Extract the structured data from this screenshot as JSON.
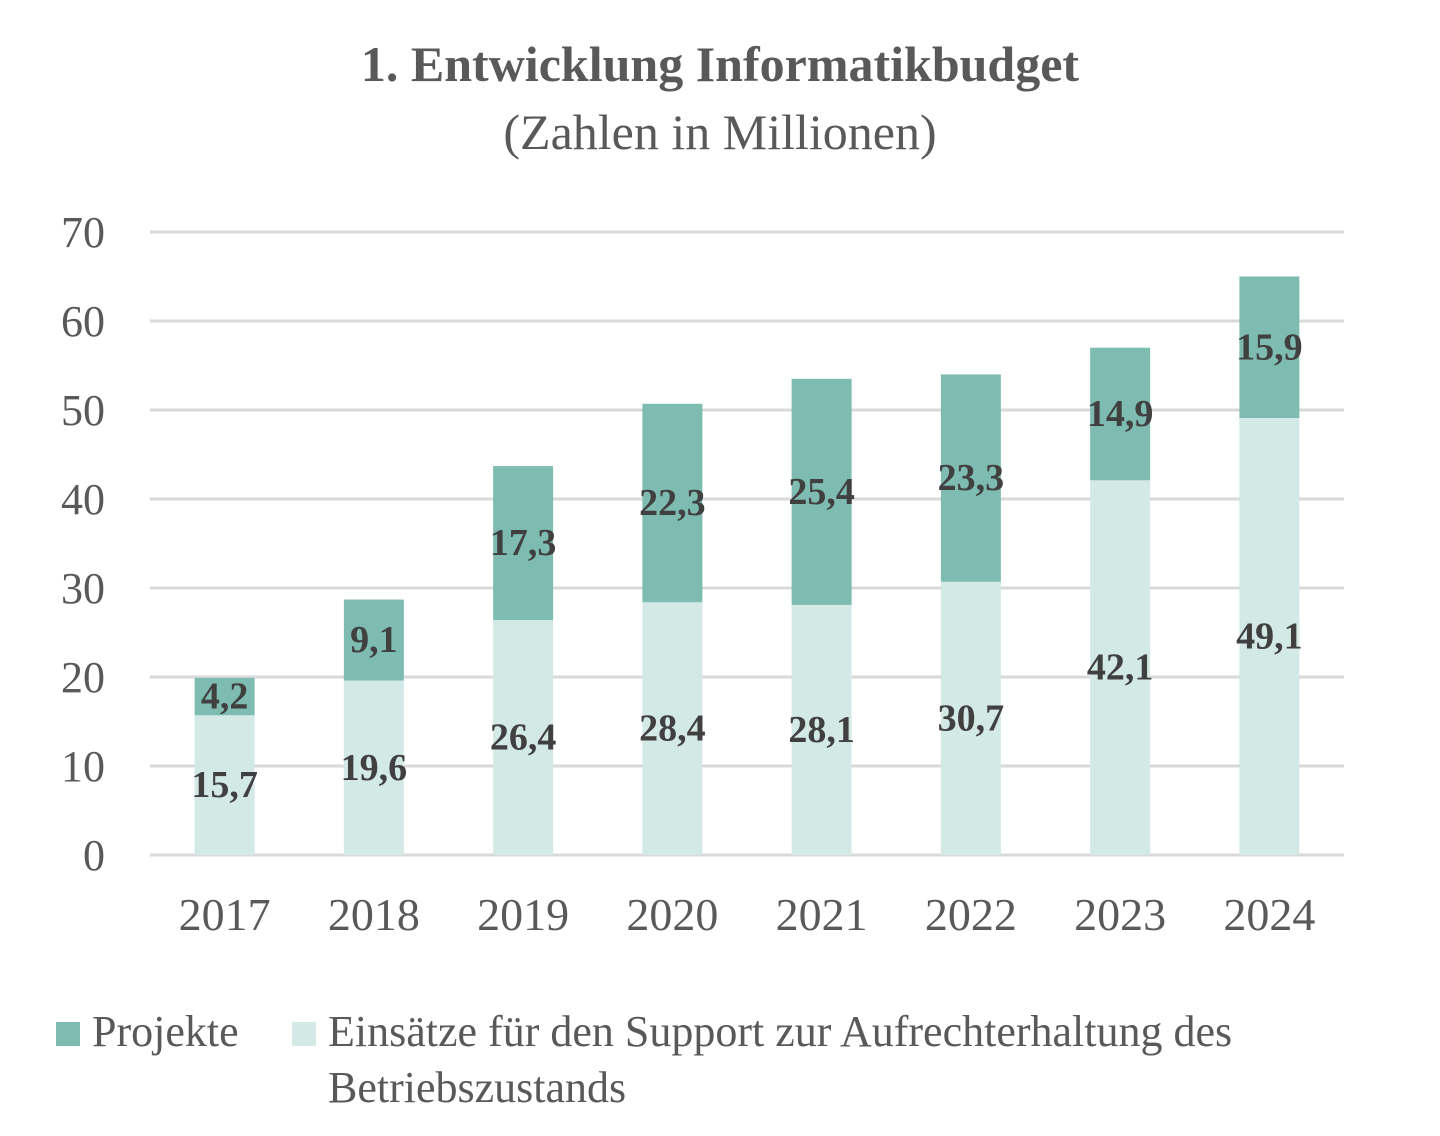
{
  "chart_data": {
    "type": "bar",
    "stacked": true,
    "title": "1. Entwicklung Informatikbudget",
    "subtitle": "(Zahlen in Millionen)",
    "xlabel": "",
    "ylabel": "",
    "ylim": [
      0,
      70
    ],
    "yticks": [
      0,
      10,
      20,
      30,
      40,
      50,
      60,
      70
    ],
    "grid": true,
    "legend_position": "bottom",
    "categories": [
      "2017",
      "2018",
      "2019",
      "2020",
      "2021",
      "2022",
      "2023",
      "2024"
    ],
    "series": [
      {
        "name": "Einsätze für den Support zur Aufrechterhaltung des Betriebszustands",
        "color": "#D3E9E5",
        "values": [
          15.7,
          19.6,
          26.4,
          28.4,
          28.1,
          30.7,
          42.1,
          49.1
        ],
        "labels": [
          "15,7",
          "19,6",
          "26,4",
          "28,4",
          "28,1",
          "30,7",
          "42,1",
          "49,1"
        ]
      },
      {
        "name": "Projekte",
        "color": "#7EBCB2",
        "values": [
          4.2,
          9.1,
          17.3,
          22.3,
          25.4,
          23.3,
          14.9,
          15.9
        ],
        "labels": [
          "4,2",
          "9,1",
          "17,3",
          "22,3",
          "25,4",
          "23,3",
          "14,9",
          "15,9"
        ]
      }
    ]
  },
  "legend": {
    "projekte": "Projekte",
    "support_line1": "Einsätze für den Support zur Aufrechterhaltung des",
    "support_line2": "Betriebszustands"
  },
  "colors": {
    "projekte": "#7EBCB2",
    "support": "#D3E9E5",
    "grid": "#D9D9D9",
    "text": "#595959",
    "data_label": "#404040"
  }
}
